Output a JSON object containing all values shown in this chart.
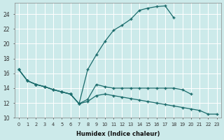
{
  "xlabel": "Humidex (Indice chaleur)",
  "bg_color": "#cceaea",
  "line_color": "#1a6b6b",
  "grid_color": "#b8d8d8",
  "xlim": [
    -0.5,
    23.5
  ],
  "ylim": [
    10,
    25.5
  ],
  "yticks": [
    10,
    12,
    14,
    16,
    18,
    20,
    22,
    24
  ],
  "xticks": [
    0,
    1,
    2,
    3,
    4,
    5,
    6,
    7,
    8,
    9,
    10,
    11,
    12,
    13,
    14,
    15,
    16,
    17,
    18,
    19,
    20,
    21,
    22,
    23
  ],
  "series": [
    {
      "x": [
        0,
        1,
        2,
        3,
        4,
        5,
        6,
        7,
        8,
        9,
        10,
        11,
        12,
        13,
        14,
        15,
        16,
        17,
        18
      ],
      "y": [
        16.5,
        15.0,
        14.5,
        14.2,
        13.8,
        13.5,
        13.2,
        11.9,
        16.5,
        18.5,
        20.3,
        21.8,
        22.5,
        23.3,
        24.5,
        24.8,
        25.0,
        25.1,
        23.5
      ]
    },
    {
      "x": [
        0,
        1,
        2,
        3,
        4,
        5,
        6,
        7,
        8,
        9,
        10,
        11,
        12,
        13,
        14,
        15,
        16,
        17,
        18,
        19,
        20
      ],
      "y": [
        16.5,
        15.0,
        14.5,
        14.2,
        13.8,
        13.5,
        13.2,
        11.9,
        12.5,
        14.5,
        14.2,
        14.0,
        14.0,
        14.0,
        14.0,
        14.0,
        14.0,
        14.0,
        14.0,
        13.8,
        13.2
      ]
    },
    {
      "x": [
        0,
        1,
        2,
        3,
        4,
        5,
        6,
        7,
        8,
        9,
        10,
        11,
        12,
        13,
        14,
        15,
        16,
        17,
        18,
        19,
        20,
        21,
        22,
        23
      ],
      "y": [
        16.5,
        15.0,
        14.5,
        14.2,
        13.8,
        13.5,
        13.2,
        11.9,
        12.2,
        13.0,
        13.2,
        13.0,
        12.8,
        12.6,
        12.4,
        12.2,
        12.0,
        11.8,
        11.6,
        11.4,
        11.2,
        11.0,
        10.5,
        10.5
      ]
    }
  ]
}
